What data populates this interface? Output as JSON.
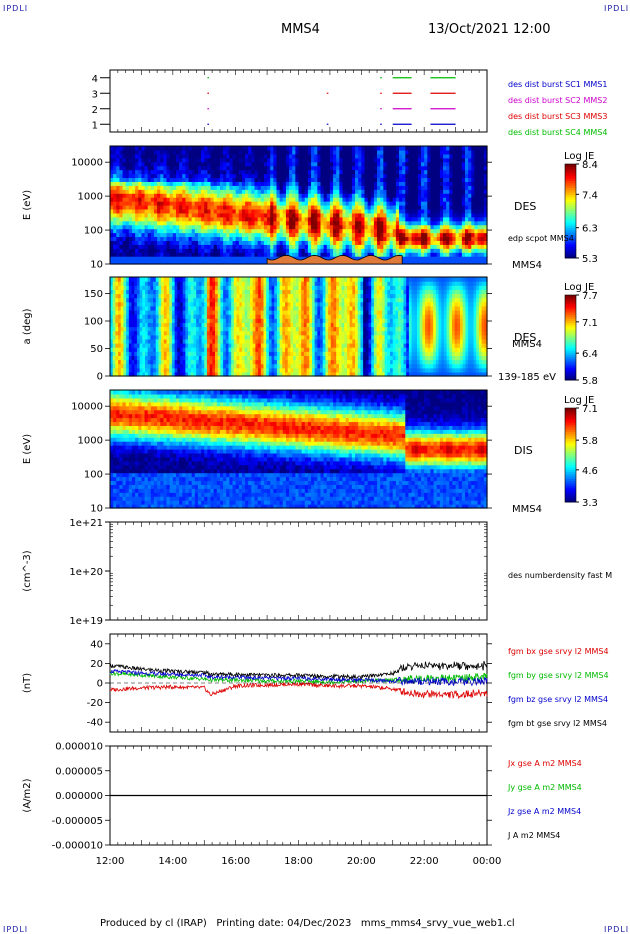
{
  "header": {
    "corner_label": "IPDLI",
    "spacecraft": "MMS4",
    "datetime": "13/Oct/2021 12:00"
  },
  "footer": {
    "produced_by": "Produced by cl (IRAP)",
    "printing_date": "Printing date: 04/Dec/2023",
    "product": "mms_mms4_srvy_vue_web1.cl"
  },
  "time_axis": {
    "ticks": [
      "12:00",
      "14:00",
      "16:00",
      "18:00",
      "20:00",
      "22:00",
      "00:00"
    ],
    "hours": [
      0,
      2,
      4,
      6,
      8,
      10,
      12
    ]
  },
  "colors": {
    "mms1": "#0000cc",
    "mms2": "#cc00cc",
    "mms3": "#dd0000",
    "mms4": "#00bb00",
    "bt": "#000000"
  },
  "chart_data": [
    {
      "type": "scatter",
      "panel": "burst-availability",
      "ytick_labels": [
        "1",
        "2",
        "3",
        "4"
      ],
      "ylim": [
        0.5,
        4.5
      ],
      "series": [
        {
          "name": "des dist burst SC1 MMS1",
          "y": 1,
          "color": "#0000cc",
          "intervals": [
            [
              3.1,
              3.15
            ],
            [
              6.9,
              6.95
            ],
            [
              8.6,
              8.65
            ],
            [
              9.0,
              9.6
            ],
            [
              10.2,
              11.0
            ]
          ]
        },
        {
          "name": "des dist burst SC2 MMS2",
          "y": 2,
          "color": "#cc00cc",
          "intervals": [
            [
              3.1,
              3.15
            ],
            [
              8.6,
              8.65
            ],
            [
              9.0,
              9.6
            ],
            [
              10.2,
              11.0
            ]
          ]
        },
        {
          "name": "des dist burst SC3 MMS3",
          "y": 3,
          "color": "#dd0000",
          "intervals": [
            [
              3.1,
              3.15
            ],
            [
              6.9,
              6.95
            ],
            [
              8.6,
              8.65
            ],
            [
              9.0,
              9.6
            ],
            [
              10.2,
              11.0
            ]
          ]
        },
        {
          "name": "des dist burst SC4 MMS4",
          "y": 4,
          "color": "#00bb00",
          "intervals": [
            [
              3.1,
              3.15
            ],
            [
              8.6,
              8.65
            ],
            [
              9.0,
              9.6
            ],
            [
              10.2,
              11.0
            ]
          ]
        }
      ]
    },
    {
      "type": "heatmap",
      "panel": "des-energy",
      "ylabel": "E (eV)",
      "scale": "log",
      "ylim": [
        10,
        30000
      ],
      "ytick_labels": [
        "10",
        "100",
        "1000",
        "10000"
      ],
      "yticks": [
        10,
        100,
        1000,
        10000
      ],
      "instrument": "DES",
      "extra_labels": [
        "edp scpot MMS4",
        "MMS4"
      ],
      "colorbar": {
        "title": "Log JE",
        "tick_labels": [
          "5.3",
          "6.3",
          "7.4",
          "8.4"
        ],
        "ticks": [
          5.3,
          6.3,
          7.4,
          8.4
        ],
        "range": [
          5.3,
          8.4
        ]
      },
      "scpot_overlay": {
        "start_hour": 5.0,
        "end_hour": 9.3,
        "level_eV": [
          13,
          18
        ]
      }
    },
    {
      "type": "heatmap",
      "panel": "des-pitch",
      "ylabel": "a (deg)",
      "ylim": [
        0,
        180
      ],
      "ytick_labels": [
        "0",
        "50",
        "100",
        "150"
      ],
      "yticks": [
        0,
        50,
        100,
        150
      ],
      "instrument": "DES",
      "extra_labels": [
        "MMS4",
        "139-185 eV"
      ],
      "colorbar": {
        "title": "Log JE",
        "tick_labels": [
          "5.8",
          "6.4",
          "7.1",
          "7.7"
        ],
        "ticks": [
          5.8,
          6.4,
          7.1,
          7.7
        ],
        "range": [
          5.8,
          7.7
        ]
      }
    },
    {
      "type": "heatmap",
      "panel": "dis-energy",
      "ylabel": "E (eV)",
      "scale": "log",
      "ylim": [
        10,
        30000
      ],
      "ytick_labels": [
        "10",
        "100",
        "1000",
        "10000"
      ],
      "yticks": [
        10,
        100,
        1000,
        10000
      ],
      "instrument": "DIS",
      "extra_labels": [
        "MMS4"
      ],
      "colorbar": {
        "title": "Log JE",
        "tick_labels": [
          "3.3",
          "4.6",
          "5.8",
          "7.1"
        ],
        "ticks": [
          3.3,
          4.6,
          5.8,
          7.1
        ],
        "range": [
          3.3,
          7.1
        ]
      }
    },
    {
      "type": "line",
      "panel": "density",
      "ylabel": "(cm^-3)",
      "scale": "log",
      "ylim": [
        1e+19,
        1e+21
      ],
      "ytick_labels": [
        "1e+19",
        "1e+20",
        "1e+21"
      ],
      "series": [
        {
          "name": "des numberdensity fast M",
          "values": []
        }
      ]
    },
    {
      "type": "line",
      "panel": "magnetic-field",
      "ylabel": "(nT)",
      "ylim": [
        -50,
        50
      ],
      "ytick_labels": [
        "-40",
        "-20",
        "0",
        "20",
        "40"
      ],
      "yticks": [
        -40,
        -20,
        0,
        20,
        40
      ],
      "x_hours": [
        0,
        1,
        2,
        3,
        3.2,
        4,
        5,
        6,
        7,
        8,
        9,
        9.5,
        10,
        11,
        12
      ],
      "series": [
        {
          "name": "fgm bx gse srvy l2 MMS4",
          "color": "#dd0000",
          "values": [
            -7,
            -5,
            -4,
            -5,
            -12,
            -3,
            -2,
            -1,
            -3,
            -3,
            -6,
            -10,
            -11,
            -12,
            -10
          ]
        },
        {
          "name": "fgm by gse srvy l2 MMS4",
          "color": "#00bb00",
          "values": [
            10,
            8,
            6,
            4,
            3,
            3,
            2,
            2,
            1,
            2,
            3,
            4,
            5,
            5,
            6
          ]
        },
        {
          "name": "fgm bz gse srvy l2 MMS4",
          "color": "#0000cc",
          "values": [
            12,
            10,
            9,
            8,
            6,
            6,
            5,
            5,
            4,
            3,
            2,
            2,
            2,
            1,
            2
          ]
        },
        {
          "name": "fgm bt gse srvy l2 MMS4",
          "color": "#000000",
          "values": [
            18,
            14,
            12,
            11,
            9,
            9,
            8,
            8,
            7,
            6,
            10,
            15,
            16,
            16,
            16
          ]
        }
      ]
    },
    {
      "type": "line",
      "panel": "current-density",
      "ylabel": "(A/m2)",
      "ylim": [
        -1e-05,
        1e-05
      ],
      "ytick_labels": [
        "-0.000010",
        "-0.000005",
        "0.000000",
        "0.000005",
        "0.000010"
      ],
      "yticks": [
        -1e-05,
        -5e-06,
        0,
        5e-06,
        1e-05
      ],
      "series": [
        {
          "name": "Jx gse A m2 MMS4",
          "color": "#dd0000",
          "values": [
            0,
            0
          ]
        },
        {
          "name": "Jy gse A m2 MMS4",
          "color": "#00bb00",
          "values": [
            0,
            0
          ]
        },
        {
          "name": "Jz gse A m2 MMS4",
          "color": "#0000cc",
          "values": [
            0,
            0
          ]
        },
        {
          "name": "J A m2 MMS4",
          "color": "#000000",
          "values": [
            0,
            0
          ]
        }
      ]
    }
  ]
}
